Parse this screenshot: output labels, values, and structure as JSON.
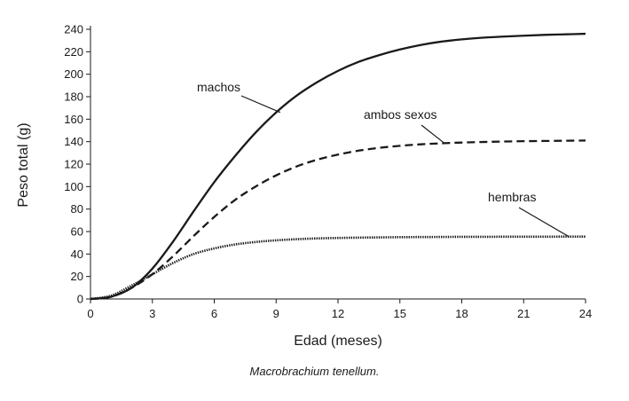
{
  "chart_data": {
    "type": "line",
    "xlabel": "Edad (meses)",
    "ylabel": "Peso total (g)",
    "xlim": [
      0,
      24
    ],
    "ylim": [
      0,
      240
    ],
    "xticks": [
      0,
      3,
      6,
      9,
      12,
      15,
      18,
      21,
      24
    ],
    "yticks": [
      0,
      20,
      40,
      60,
      80,
      100,
      120,
      140,
      160,
      180,
      200,
      220,
      240
    ],
    "grid": false,
    "x": [
      0,
      1,
      2,
      3,
      4,
      5,
      6,
      7,
      8,
      9,
      10,
      11,
      12,
      13,
      14,
      15,
      16,
      17,
      18,
      19,
      20,
      21,
      22,
      23,
      24
    ],
    "series": [
      {
        "name": "machos",
        "style": "solid",
        "values": [
          0,
          2,
          10,
          27,
          51,
          78,
          104,
          127,
          148,
          166,
          181,
          193,
          203,
          211,
          217,
          222,
          226,
          229,
          231,
          232.5,
          233.5,
          234.3,
          235,
          235.5,
          236
        ]
      },
      {
        "name": "ambos sexos",
        "style": "dashed",
        "values": [
          0,
          2,
          10,
          22,
          38,
          56,
          73,
          88,
          100,
          110,
          118,
          124,
          128.5,
          132,
          134.5,
          136.3,
          137.6,
          138.5,
          139.2,
          139.7,
          140.1,
          140.4,
          140.6,
          140.8,
          141
        ]
      },
      {
        "name": "hembras",
        "style": "dotted",
        "values": [
          0,
          3,
          12,
          22,
          32,
          40,
          45,
          48.5,
          50.7,
          52.2,
          53.2,
          53.9,
          54.3,
          54.6,
          54.8,
          55,
          55.1,
          55.2,
          55.3,
          55.3,
          55.4,
          55.4,
          55.4,
          55.5,
          55.5
        ]
      }
    ],
    "annotations": [
      {
        "text": "machos",
        "arrow_to": [
          9.2,
          166
        ]
      },
      {
        "text": "ambos sexos",
        "arrow_to": [
          17.2,
          138
        ]
      },
      {
        "text": "hembras",
        "arrow_to": [
          23.2,
          55.4
        ]
      }
    ],
    "caption": "Macrobrachium tenellum."
  },
  "colors": {
    "ink": "#1a1a1a",
    "background": "#ffffff"
  }
}
